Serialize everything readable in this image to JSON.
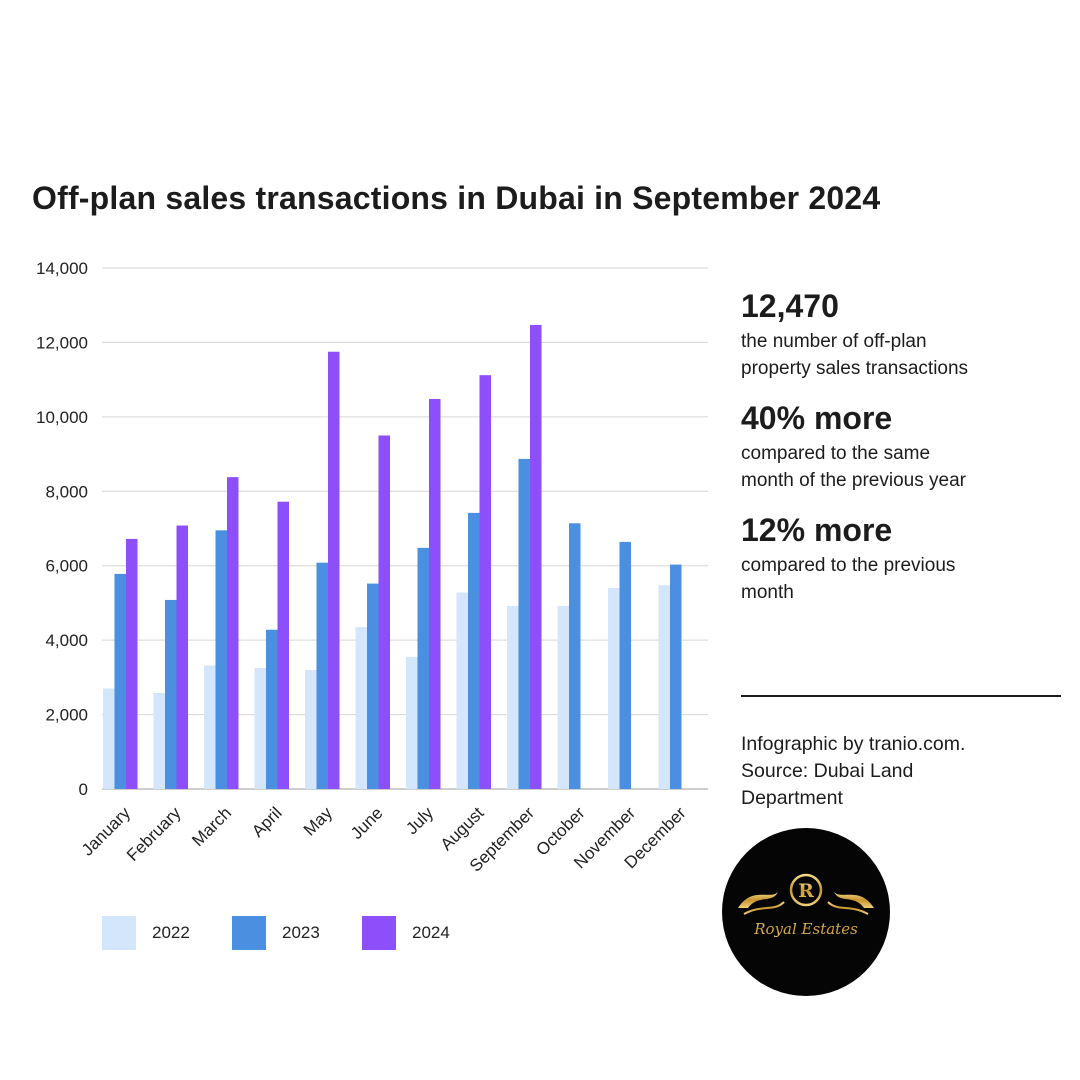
{
  "chart_data": {
    "type": "bar",
    "title": "Off-plan sales transactions in Dubai in September 2024",
    "categories": [
      "January",
      "February",
      "March",
      "April",
      "May",
      "June",
      "July",
      "August",
      "September",
      "October",
      "November",
      "December"
    ],
    "series": [
      {
        "name": "2022",
        "color": "#d4e6fb",
        "values": [
          2700,
          2580,
          3320,
          3250,
          3200,
          4350,
          3550,
          5280,
          4920,
          4920,
          5400,
          5480
        ]
      },
      {
        "name": "2023",
        "color": "#4a8fe0",
        "values": [
          5780,
          5080,
          6950,
          4280,
          6080,
          5520,
          6480,
          7420,
          8870,
          7140,
          6640,
          6030
        ]
      },
      {
        "name": "2024",
        "color": "#8d4ffa",
        "values": [
          6720,
          7080,
          8380,
          7720,
          11750,
          9500,
          10480,
          11120,
          12470,
          null,
          null,
          null
        ]
      }
    ],
    "yticks": [
      "0",
      "2,000",
      "4,000",
      "6,000",
      "8,000",
      "10,000",
      "12,000",
      "14,000"
    ],
    "ylim": [
      0,
      14000
    ],
    "grid": true,
    "legend": "bottom-left"
  },
  "stats": [
    {
      "value": "12,470",
      "desc_line1": "the number of off-plan",
      "desc_line2": "property sales transactions"
    },
    {
      "value": "40% more",
      "desc_line1": "compared to the same",
      "desc_line2": "month of the previous year"
    },
    {
      "value": "12% more",
      "desc_line1": "compared to the previous",
      "desc_line2": "month"
    }
  ],
  "credit": {
    "line1": "Infographic by tranio.com.",
    "line2": "Source: Dubai Land",
    "line3": "Department"
  },
  "logo": {
    "initial": "R",
    "text": "Royal Estates",
    "colors": {
      "background": "#050505",
      "gold": "#d9b45a"
    }
  }
}
